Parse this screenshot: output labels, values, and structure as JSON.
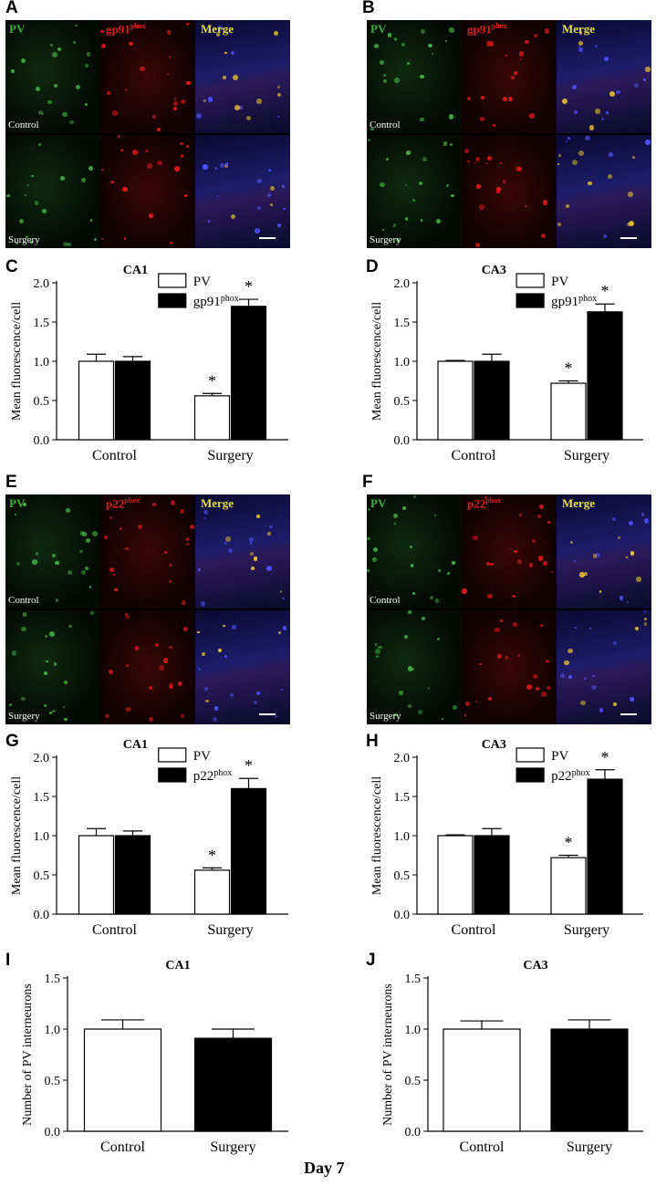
{
  "panels": {
    "A": {
      "letter": "A",
      "channels": [
        "PV",
        "gp91",
        "Merge"
      ],
      "channel_sup": "phox",
      "rows": [
        "Control",
        "Surgery"
      ]
    },
    "B": {
      "letter": "B",
      "channels": [
        "PV",
        "gp91",
        "Merge"
      ],
      "channel_sup": "phox",
      "rows": [
        "Control",
        "Surgery"
      ]
    },
    "E": {
      "letter": "E",
      "channels": [
        "PV",
        "p22",
        "Merge"
      ],
      "channel_sup": "phox",
      "rows": [
        "Control",
        "Surgery"
      ]
    },
    "F": {
      "letter": "F",
      "channels": [
        "PV",
        "p22",
        "Merge"
      ],
      "channel_sup": "phox",
      "rows": [
        "Control",
        "Surgery"
      ]
    }
  },
  "chart_data": [
    {
      "id": "C",
      "letter": "C",
      "type": "bar",
      "title": "CA1",
      "ylabel": "Mean fluorescence/cell",
      "categories": [
        "Control",
        "Surgery"
      ],
      "ylim": [
        0,
        2.0
      ],
      "yticks": [
        "0.0",
        "0.5",
        "1.0",
        "1.5",
        "2.0"
      ],
      "series": [
        {
          "name": "PV",
          "name_sup": "",
          "color": "#ffffff",
          "values": [
            1.0,
            0.56
          ],
          "errors": [
            0.09,
            0.03
          ],
          "sig": [
            "",
            "*"
          ]
        },
        {
          "name": "gp91",
          "name_sup": "phox",
          "color": "#000000",
          "values": [
            1.0,
            1.7
          ],
          "errors": [
            0.06,
            0.09
          ],
          "sig": [
            "",
            "*"
          ]
        }
      ]
    },
    {
      "id": "D",
      "letter": "D",
      "type": "bar",
      "title": "CA3",
      "ylabel": "Mean fluorescence/cell",
      "categories": [
        "Control",
        "Surgery"
      ],
      "ylim": [
        0,
        2.0
      ],
      "yticks": [
        "0.0",
        "0.5",
        "1.0",
        "1.5",
        "2.0"
      ],
      "series": [
        {
          "name": "PV",
          "name_sup": "",
          "color": "#ffffff",
          "values": [
            1.0,
            0.72
          ],
          "errors": [
            0.01,
            0.03
          ],
          "sig": [
            "",
            "*"
          ]
        },
        {
          "name": "gp91",
          "name_sup": "phox",
          "color": "#000000",
          "values": [
            1.0,
            1.63
          ],
          "errors": [
            0.09,
            0.1
          ],
          "sig": [
            "",
            "*"
          ]
        }
      ]
    },
    {
      "id": "G",
      "letter": "G",
      "type": "bar",
      "title": "CA1",
      "ylabel": "Mean fluorescence/cell",
      "categories": [
        "Control",
        "Surgery"
      ],
      "ylim": [
        0,
        2.0
      ],
      "yticks": [
        "0.0",
        "0.5",
        "1.0",
        "1.5",
        "2.0"
      ],
      "series": [
        {
          "name": "PV",
          "name_sup": "",
          "color": "#ffffff",
          "values": [
            1.0,
            0.56
          ],
          "errors": [
            0.09,
            0.03
          ],
          "sig": [
            "",
            "*"
          ]
        },
        {
          "name": "p22",
          "name_sup": "phox",
          "color": "#000000",
          "values": [
            1.0,
            1.6
          ],
          "errors": [
            0.06,
            0.13
          ],
          "sig": [
            "",
            "*"
          ]
        }
      ]
    },
    {
      "id": "H",
      "letter": "H",
      "type": "bar",
      "title": "CA3",
      "ylabel": "Mean fluorescence/cell",
      "categories": [
        "Control",
        "Surgery"
      ],
      "ylim": [
        0,
        2.0
      ],
      "yticks": [
        "0.0",
        "0.5",
        "1.0",
        "1.5",
        "2.0"
      ],
      "series": [
        {
          "name": "PV",
          "name_sup": "",
          "color": "#ffffff",
          "values": [
            1.0,
            0.72
          ],
          "errors": [
            0.01,
            0.03
          ],
          "sig": [
            "",
            "*"
          ]
        },
        {
          "name": "p22",
          "name_sup": "phox",
          "color": "#000000",
          "values": [
            1.0,
            1.72
          ],
          "errors": [
            0.09,
            0.12
          ],
          "sig": [
            "",
            "*"
          ]
        }
      ]
    },
    {
      "id": "I",
      "letter": "I",
      "type": "bar",
      "title": "CA1",
      "ylabel": "Number of PV interneurons",
      "categories": [
        "Control",
        "Surgery"
      ],
      "ylim": [
        0,
        1.5
      ],
      "yticks": [
        "0.0",
        "0.5",
        "1.0",
        "1.5"
      ],
      "series": [
        {
          "name": "",
          "name_sup": "",
          "color": "#ffffff",
          "values": [
            1.0,
            null
          ],
          "errors": [
            0.09,
            null
          ],
          "sig": [
            "",
            ""
          ]
        },
        {
          "name": "",
          "name_sup": "",
          "color": "#000000",
          "values": [
            null,
            0.91
          ],
          "errors": [
            null,
            0.09
          ],
          "sig": [
            "",
            ""
          ]
        }
      ]
    },
    {
      "id": "J",
      "letter": "J",
      "type": "bar",
      "title": "CA3",
      "ylabel": "Number of PV interneurons",
      "categories": [
        "Control",
        "Surgery"
      ],
      "ylim": [
        0,
        1.5
      ],
      "yticks": [
        "0.0",
        "0.5",
        "1.0",
        "1.5"
      ],
      "series": [
        {
          "name": "",
          "name_sup": "",
          "color": "#ffffff",
          "values": [
            1.0,
            null
          ],
          "errors": [
            0.08,
            null
          ],
          "sig": [
            "",
            ""
          ]
        },
        {
          "name": "",
          "name_sup": "",
          "color": "#000000",
          "values": [
            null,
            1.0
          ],
          "errors": [
            null,
            0.09
          ],
          "sig": [
            "",
            ""
          ]
        }
      ]
    }
  ],
  "footer": "Day 7"
}
